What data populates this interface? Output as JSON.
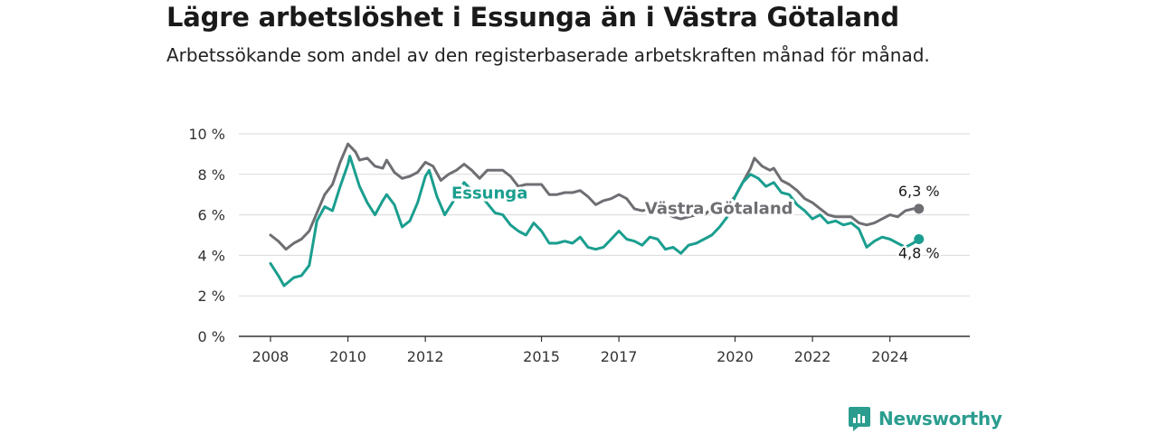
{
  "title": "Lägre arbetslöshet i Essunga än i Västra Götaland",
  "subtitle": "Arbetssökande som andel av den registerbaserade arbetskraften månad för månad.",
  "brand": {
    "name": "Newsworthy",
    "color": "#2a9d8f",
    "icon": "bar-chart-speech-bubble-icon"
  },
  "chart_data": {
    "type": "line",
    "title": "",
    "xlabel": "",
    "ylabel": "",
    "xlim": [
      2008,
      2025.2
    ],
    "ylim": [
      0,
      10
    ],
    "x_ticks": [
      {
        "value": 2008,
        "label": "2008"
      },
      {
        "value": 2010,
        "label": "2010"
      },
      {
        "value": 2012,
        "label": "2012"
      },
      {
        "value": 2015,
        "label": "2015"
      },
      {
        "value": 2017,
        "label": "2017"
      },
      {
        "value": 2020,
        "label": "2020"
      },
      {
        "value": 2022,
        "label": "2022"
      },
      {
        "value": 2024,
        "label": "2024"
      }
    ],
    "y_ticks": [
      {
        "value": 0,
        "label": "0 %"
      },
      {
        "value": 2,
        "label": "2 %"
      },
      {
        "value": 4,
        "label": "4 %"
      },
      {
        "value": 6,
        "label": "6 %"
      },
      {
        "value": 8,
        "label": "8 %"
      },
      {
        "value": 10,
        "label": "10 %"
      }
    ],
    "grid": true,
    "legend": "inline labels",
    "series": [
      {
        "name": "Västra Götaland",
        "color": "#6e6e73",
        "end_value_label": "6,3 %",
        "points": [
          [
            2008.0,
            5.0
          ],
          [
            2008.2,
            4.7
          ],
          [
            2008.4,
            4.3
          ],
          [
            2008.6,
            4.6
          ],
          [
            2008.8,
            4.8
          ],
          [
            2009.0,
            5.2
          ],
          [
            2009.2,
            6.1
          ],
          [
            2009.4,
            7.0
          ],
          [
            2009.6,
            7.5
          ],
          [
            2009.8,
            8.6
          ],
          [
            2010.0,
            9.5
          ],
          [
            2010.2,
            9.1
          ],
          [
            2010.3,
            8.7
          ],
          [
            2010.5,
            8.8
          ],
          [
            2010.7,
            8.4
          ],
          [
            2010.9,
            8.3
          ],
          [
            2011.0,
            8.7
          ],
          [
            2011.2,
            8.1
          ],
          [
            2011.4,
            7.8
          ],
          [
            2011.6,
            7.9
          ],
          [
            2011.8,
            8.1
          ],
          [
            2012.0,
            8.6
          ],
          [
            2012.2,
            8.4
          ],
          [
            2012.4,
            7.7
          ],
          [
            2012.6,
            8.0
          ],
          [
            2012.8,
            8.2
          ],
          [
            2013.0,
            8.5
          ],
          [
            2013.2,
            8.2
          ],
          [
            2013.4,
            7.8
          ],
          [
            2013.6,
            8.2
          ],
          [
            2013.8,
            8.2
          ],
          [
            2014.0,
            8.2
          ],
          [
            2014.2,
            7.9
          ],
          [
            2014.4,
            7.4
          ],
          [
            2014.6,
            7.5
          ],
          [
            2014.8,
            7.5
          ],
          [
            2015.0,
            7.5
          ],
          [
            2015.2,
            7.0
          ],
          [
            2015.4,
            7.0
          ],
          [
            2015.6,
            7.1
          ],
          [
            2015.8,
            7.1
          ],
          [
            2016.0,
            7.2
          ],
          [
            2016.2,
            6.9
          ],
          [
            2016.4,
            6.5
          ],
          [
            2016.6,
            6.7
          ],
          [
            2016.8,
            6.8
          ],
          [
            2017.0,
            7.0
          ],
          [
            2017.2,
            6.8
          ],
          [
            2017.4,
            6.3
          ],
          [
            2017.6,
            6.2
          ],
          [
            2017.8,
            6.3
          ],
          [
            2018.0,
            6.3
          ],
          [
            2018.2,
            6.1
          ],
          [
            2018.4,
            5.9
          ],
          [
            2018.6,
            5.8
          ],
          [
            2018.8,
            5.9
          ],
          [
            2019.0,
            6.0
          ],
          [
            2019.2,
            6.0
          ],
          [
            2019.4,
            6.3
          ],
          [
            2019.6,
            6.5
          ],
          [
            2019.8,
            6.5
          ],
          [
            2020.0,
            6.9
          ],
          [
            2020.2,
            7.6
          ],
          [
            2020.4,
            8.3
          ],
          [
            2020.5,
            8.8
          ],
          [
            2020.7,
            8.4
          ],
          [
            2020.9,
            8.2
          ],
          [
            2021.0,
            8.3
          ],
          [
            2021.2,
            7.7
          ],
          [
            2021.4,
            7.5
          ],
          [
            2021.6,
            7.2
          ],
          [
            2021.8,
            6.8
          ],
          [
            2022.0,
            6.6
          ],
          [
            2022.2,
            6.3
          ],
          [
            2022.4,
            6.0
          ],
          [
            2022.6,
            5.9
          ],
          [
            2022.8,
            5.9
          ],
          [
            2023.0,
            5.9
          ],
          [
            2023.2,
            5.6
          ],
          [
            2023.4,
            5.5
          ],
          [
            2023.6,
            5.6
          ],
          [
            2023.8,
            5.8
          ],
          [
            2024.0,
            6.0
          ],
          [
            2024.2,
            5.9
          ],
          [
            2024.4,
            6.2
          ],
          [
            2024.6,
            6.3
          ],
          [
            2024.75,
            6.3
          ]
        ]
      },
      {
        "name": "Essunga",
        "color": "#1a9e8f",
        "end_value_label": "4,8 %",
        "points": [
          [
            2008.0,
            3.6
          ],
          [
            2008.2,
            3.0
          ],
          [
            2008.35,
            2.5
          ],
          [
            2008.6,
            2.9
          ],
          [
            2008.8,
            3.0
          ],
          [
            2009.0,
            3.5
          ],
          [
            2009.2,
            5.7
          ],
          [
            2009.4,
            6.4
          ],
          [
            2009.6,
            6.2
          ],
          [
            2009.8,
            7.4
          ],
          [
            2010.0,
            8.5
          ],
          [
            2010.05,
            8.9
          ],
          [
            2010.3,
            7.4
          ],
          [
            2010.5,
            6.6
          ],
          [
            2010.7,
            6.0
          ],
          [
            2010.9,
            6.7
          ],
          [
            2011.0,
            7.0
          ],
          [
            2011.2,
            6.5
          ],
          [
            2011.4,
            5.4
          ],
          [
            2011.6,
            5.7
          ],
          [
            2011.8,
            6.6
          ],
          [
            2012.0,
            7.9
          ],
          [
            2012.1,
            8.2
          ],
          [
            2012.3,
            6.9
          ],
          [
            2012.5,
            6.0
          ],
          [
            2012.7,
            6.6
          ],
          [
            2013.0,
            7.6
          ],
          [
            2013.2,
            7.2
          ],
          [
            2013.5,
            6.8
          ],
          [
            2013.8,
            6.1
          ],
          [
            2014.0,
            6.0
          ],
          [
            2014.2,
            5.5
          ],
          [
            2014.4,
            5.2
          ],
          [
            2014.6,
            5.0
          ],
          [
            2014.8,
            5.6
          ],
          [
            2015.0,
            5.2
          ],
          [
            2015.2,
            4.6
          ],
          [
            2015.4,
            4.6
          ],
          [
            2015.6,
            4.7
          ],
          [
            2015.8,
            4.6
          ],
          [
            2016.0,
            4.9
          ],
          [
            2016.2,
            4.4
          ],
          [
            2016.4,
            4.3
          ],
          [
            2016.6,
            4.4
          ],
          [
            2016.8,
            4.8
          ],
          [
            2017.0,
            5.2
          ],
          [
            2017.2,
            4.8
          ],
          [
            2017.4,
            4.7
          ],
          [
            2017.6,
            4.5
          ],
          [
            2017.8,
            4.9
          ],
          [
            2018.0,
            4.8
          ],
          [
            2018.2,
            4.3
          ],
          [
            2018.4,
            4.4
          ],
          [
            2018.6,
            4.1
          ],
          [
            2018.8,
            4.5
          ],
          [
            2019.0,
            4.6
          ],
          [
            2019.2,
            4.8
          ],
          [
            2019.4,
            5.0
          ],
          [
            2019.6,
            5.4
          ],
          [
            2019.8,
            5.9
          ],
          [
            2020.0,
            6.9
          ],
          [
            2020.2,
            7.6
          ],
          [
            2020.4,
            8.0
          ],
          [
            2020.6,
            7.8
          ],
          [
            2020.8,
            7.4
          ],
          [
            2021.0,
            7.6
          ],
          [
            2021.2,
            7.1
          ],
          [
            2021.4,
            7.0
          ],
          [
            2021.6,
            6.5
          ],
          [
            2021.8,
            6.2
          ],
          [
            2022.0,
            5.8
          ],
          [
            2022.2,
            6.0
          ],
          [
            2022.4,
            5.6
          ],
          [
            2022.6,
            5.7
          ],
          [
            2022.8,
            5.5
          ],
          [
            2023.0,
            5.6
          ],
          [
            2023.2,
            5.3
          ],
          [
            2023.4,
            4.4
          ],
          [
            2023.6,
            4.7
          ],
          [
            2023.8,
            4.9
          ],
          [
            2024.0,
            4.8
          ],
          [
            2024.2,
            4.6
          ],
          [
            2024.4,
            4.4
          ],
          [
            2024.6,
            4.6
          ],
          [
            2024.75,
            4.8
          ]
        ]
      }
    ],
    "annotations": [
      {
        "text": "Essunga",
        "series": "Essunga",
        "x": 2013.0,
        "y": 6.8
      },
      {
        "text": "Västra Götaland",
        "series": "Västra Götaland",
        "x": 2018.0,
        "y": 6.05
      }
    ]
  }
}
